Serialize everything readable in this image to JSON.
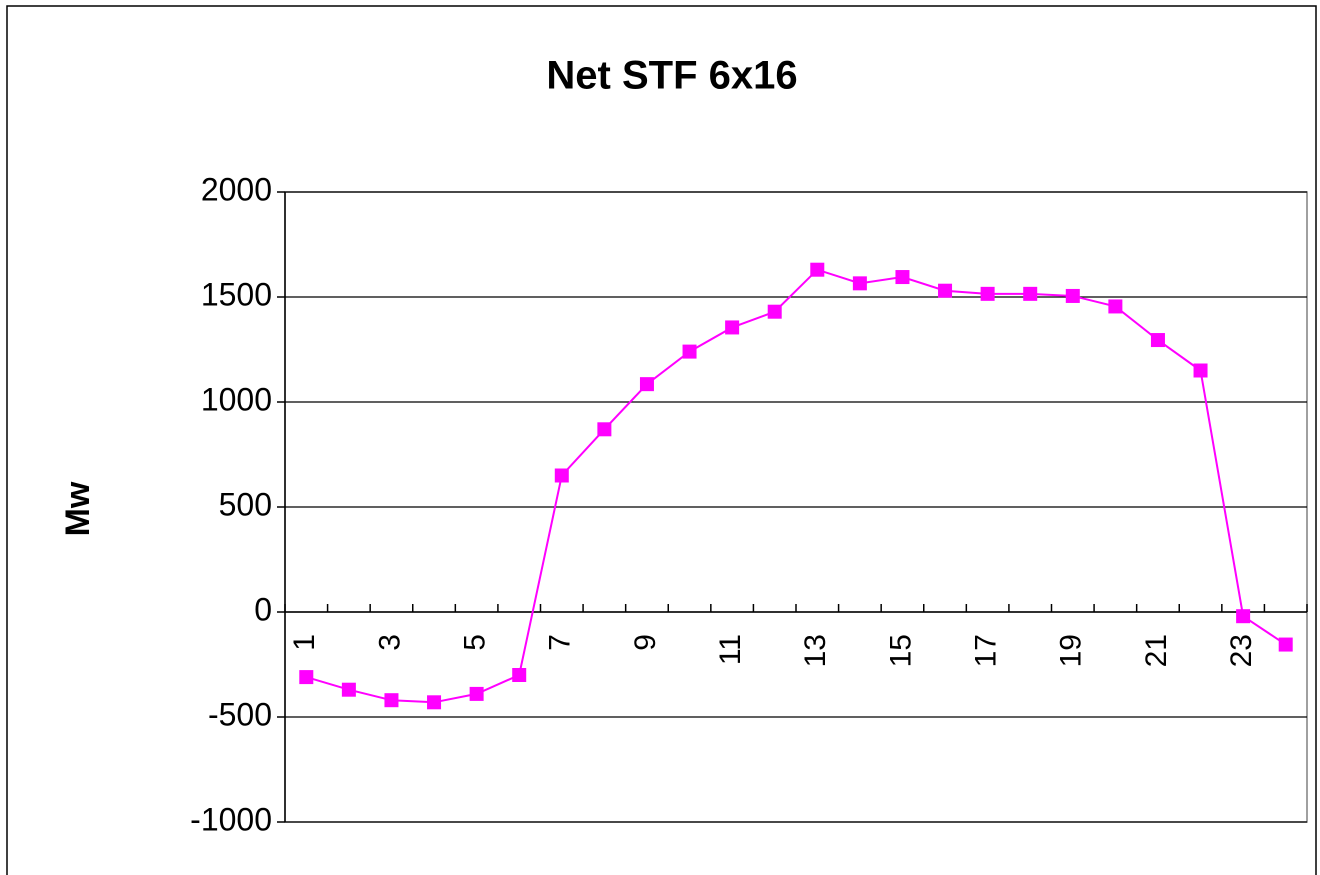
{
  "chart_data": {
    "type": "line",
    "title": "Net STF 6x16",
    "y_label": "Mw",
    "categories": [
      "1",
      null,
      "3",
      null,
      "5",
      null,
      "7",
      null,
      "9",
      null,
      "11",
      null,
      "13",
      null,
      "15",
      null,
      "17",
      null,
      "19",
      null,
      "21",
      null,
      "23",
      null
    ],
    "values": [
      -310,
      -370,
      -420,
      -430,
      -390,
      -300,
      650,
      870,
      1085,
      1240,
      1355,
      1430,
      1630,
      1565,
      1595,
      1530,
      1515,
      1515,
      1505,
      1455,
      1295,
      1150,
      -20,
      -155
    ],
    "color": "#ff00ff",
    "ylim": [
      -1000,
      2000
    ],
    "yticks": [
      -1000,
      -500,
      0,
      500,
      1000,
      1500,
      2000
    ],
    "grid": true
  }
}
